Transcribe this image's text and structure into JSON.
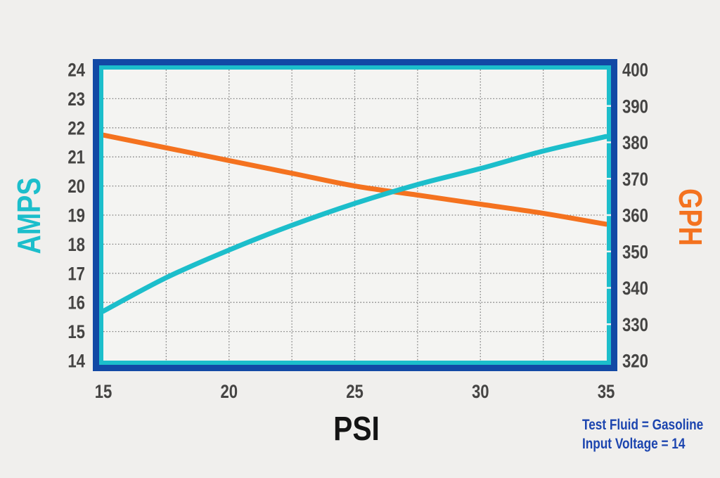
{
  "colors": {
    "background": "#f0efed",
    "plot_background": "#f4f4f2",
    "frame_outer_blue": "#1249a5",
    "frame_inner_cyan": "#1cbecb",
    "grid": "#828282",
    "tick_label": "#454443",
    "x_title": "#141414",
    "notes_blue": "#1c45af",
    "amps_series": "#1cbecb",
    "gph_series": "#f4721f"
  },
  "chart_data": {
    "type": "line",
    "title": "",
    "x": [
      15,
      17.5,
      20,
      22.5,
      25,
      27.5,
      30,
      32.5,
      35
    ],
    "series": [
      {
        "name": "AMPS",
        "axis": "left",
        "color": "#1cbecb",
        "values": [
          15.7,
          16.85,
          17.8,
          18.65,
          19.4,
          20.05,
          20.6,
          21.2,
          21.7
        ]
      },
      {
        "name": "GPH",
        "axis": "right",
        "color": "#f4721f",
        "values": [
          382,
          378.5,
          375,
          371.5,
          368,
          365.5,
          363,
          360.5,
          357.5
        ]
      }
    ],
    "x_axis": {
      "title": "PSI",
      "min": 15,
      "max": 35,
      "label_step": 5,
      "grid_step": 2.5,
      "tick_labels": [
        "15",
        "20",
        "25",
        "30",
        "35"
      ]
    },
    "left_axis": {
      "title": "AMPS",
      "min": 14,
      "max": 24,
      "tick_step": 1,
      "tick_labels": [
        "14",
        "15",
        "16",
        "17",
        "18",
        "19",
        "20",
        "21",
        "22",
        "23",
        "24"
      ]
    },
    "right_axis": {
      "title": "GPH",
      "min": 320,
      "max": 400,
      "tick_step": 10,
      "tick_labels": [
        "320",
        "330",
        "340",
        "350",
        "360",
        "370",
        "380",
        "390",
        "400"
      ]
    },
    "grid": "dotted",
    "legend": "none",
    "annotations": [
      "Test Fluid = Gasoline",
      "Input Voltage = 14"
    ]
  },
  "notes": {
    "line1": "Test Fluid = Gasoline",
    "line2": "Input Voltage = 14"
  }
}
